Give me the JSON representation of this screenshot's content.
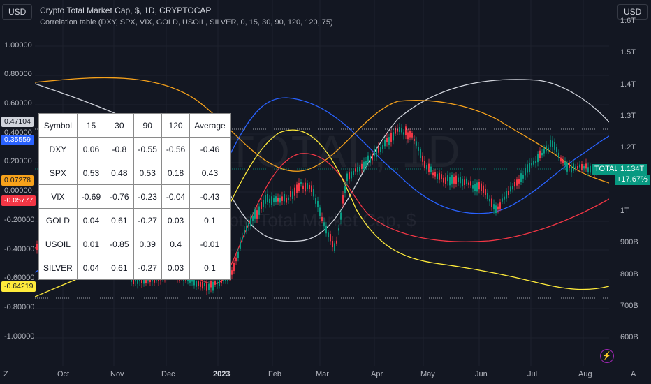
{
  "header": {
    "title": "Crypto Total Market Cap, $, 1D, CRYPTOCAP",
    "indicator": "Correlation table (DXY, SPX, VIX, GOLD, USOIL, SILVER, 0, 15, 30, 90, 120, 120, 75)",
    "currency_left": "USD",
    "currency_right": "USD"
  },
  "watermark": {
    "symbol": "TOTAL, 1D",
    "name": "Crypto Total Market Cap, $"
  },
  "left_axis": [
    "1.00000",
    "0.80000",
    "0.60000",
    "0.40000",
    "0.20000",
    "0.00000",
    "-0.20000",
    "-0.40000",
    "-0.60000",
    "-0.80000",
    "-1.00000"
  ],
  "left_badges": {
    "b1": {
      "text": "0.47104",
      "bg": "#d1d4dc",
      "fg": "#131722"
    },
    "b2": {
      "text": "0.35559",
      "bg": "#2962ff",
      "fg": "#ffffff"
    },
    "b3": {
      "text": "0.07278",
      "bg": "#f7a21b",
      "fg": "#131722"
    },
    "b4": {
      "text": "-0.05777",
      "bg": "#f23645",
      "fg": "#ffffff"
    },
    "b5": {
      "text": "-0.64219",
      "bg": "#ffeb3b",
      "fg": "#131722"
    }
  },
  "right_axis": [
    "1.6T",
    "1.5T",
    "1.4T",
    "1.3T",
    "1.2T",
    "1T",
    "900B",
    "800B",
    "700B",
    "600B"
  ],
  "price": {
    "symbol": "TOTAL",
    "value": "1.134T",
    "change": "+17.67%"
  },
  "x_axis": [
    "Oct",
    "Nov",
    "Dec",
    "2023",
    "Feb",
    "Mar",
    "Apr",
    "May",
    "Jun",
    "Jul",
    "Aug"
  ],
  "corner_labels": {
    "left": "Z",
    "right": "A"
  },
  "table": {
    "header": [
      "Symbol",
      "15",
      "30",
      "90",
      "120",
      "Average"
    ],
    "rows": [
      [
        "DXY",
        "0.06",
        "-0.8",
        "-0.55",
        "-0.56",
        "-0.46"
      ],
      [
        "SPX",
        "0.53",
        "0.48",
        "0.53",
        "0.18",
        "0.43"
      ],
      [
        "VIX",
        "-0.69",
        "-0.76",
        "-0.23",
        "-0.04",
        "-0.43"
      ],
      [
        "GOLD",
        "0.04",
        "0.61",
        "-0.27",
        "0.03",
        "0.1"
      ],
      [
        "USOIL",
        "0.01",
        "-0.85",
        "0.39",
        "0.4",
        "-0.01"
      ],
      [
        "SILVER",
        "0.04",
        "0.61",
        "-0.27",
        "0.03",
        "0.1"
      ]
    ]
  },
  "colors": {
    "background": "#131722",
    "candle_up": "#089981",
    "candle_down": "#f23645",
    "dxy": "#d1d4dc",
    "spx": "#2962ff",
    "vix": "#f7a21b",
    "gold": "#ffeb3b",
    "usoil": "#f23645"
  }
}
